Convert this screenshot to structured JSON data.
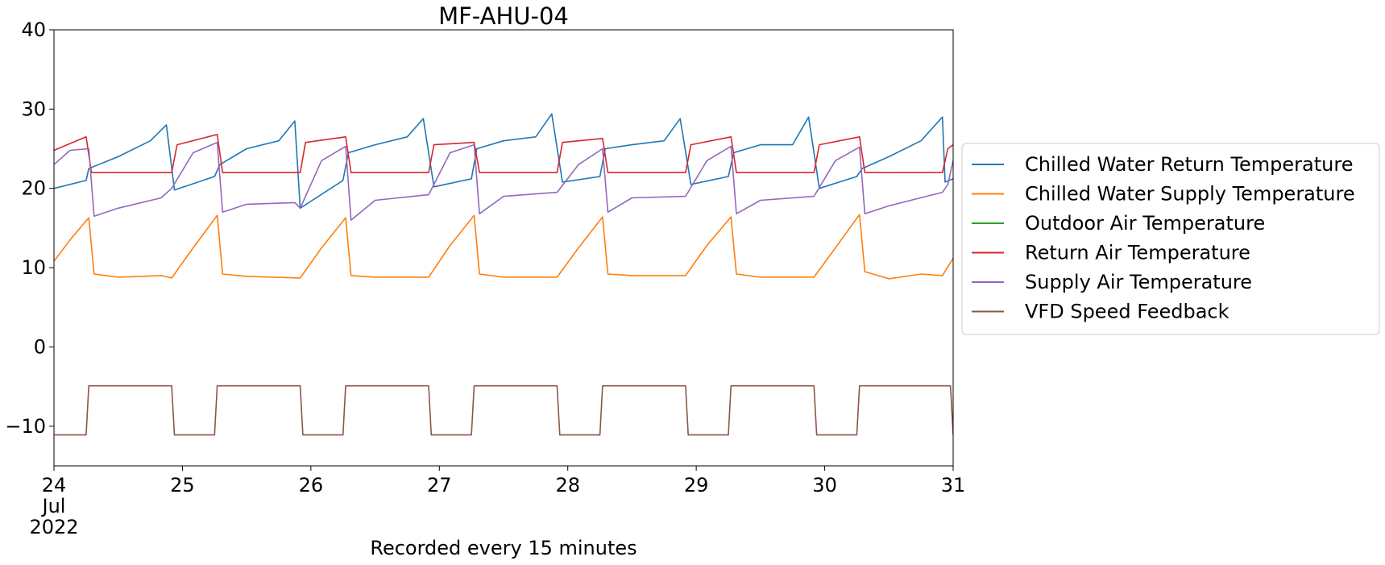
{
  "chart_data": {
    "type": "line",
    "title": "MF-AHU-04",
    "xlabel": "Recorded every 15 minutes",
    "ylabel": "",
    "xlim": [
      "2022-07-24",
      "2022-07-31"
    ],
    "ylim": [
      -15,
      40
    ],
    "x_ticks": [
      {
        "value": "2022-07-24",
        "label": "24",
        "sublabels": [
          "Jul",
          "2022"
        ]
      },
      {
        "value": "2022-07-25",
        "label": "25"
      },
      {
        "value": "2022-07-26",
        "label": "26"
      },
      {
        "value": "2022-07-27",
        "label": "27"
      },
      {
        "value": "2022-07-28",
        "label": "28"
      },
      {
        "value": "2022-07-29",
        "label": "29"
      },
      {
        "value": "2022-07-30",
        "label": "30"
      },
      {
        "value": "2022-07-31",
        "label": "31"
      }
    ],
    "y_ticks": [
      {
        "value": 40,
        "label": "40"
      },
      {
        "value": 30,
        "label": "30"
      },
      {
        "value": 20,
        "label": "20"
      },
      {
        "value": 10,
        "label": "10"
      },
      {
        "value": 0,
        "label": "0"
      },
      {
        "value": -10,
        "label": "−10"
      }
    ],
    "grid": false,
    "legend_position": "right-outside",
    "series": [
      {
        "name": "Chilled Water Return Temperature",
        "color": "#1f77b4",
        "points": [
          [
            "2022-07-24 00:00",
            20.0
          ],
          [
            "2022-07-24 06:00",
            21.0
          ],
          [
            "2022-07-24 06:30",
            22.5
          ],
          [
            "2022-07-24 12:00",
            24.0
          ],
          [
            "2022-07-24 18:00",
            26.0
          ],
          [
            "2022-07-24 21:00",
            28.0
          ],
          [
            "2022-07-24 22:30",
            19.8
          ],
          [
            "2022-07-25 06:00",
            21.5
          ],
          [
            "2022-07-25 07:00",
            23.0
          ],
          [
            "2022-07-25 12:00",
            25.0
          ],
          [
            "2022-07-25 18:00",
            26.0
          ],
          [
            "2022-07-25 21:00",
            28.5
          ],
          [
            "2022-07-25 22:00",
            17.5
          ],
          [
            "2022-07-26 06:00",
            21.0
          ],
          [
            "2022-07-26 07:00",
            24.5
          ],
          [
            "2022-07-26 12:00",
            25.5
          ],
          [
            "2022-07-26 18:00",
            26.5
          ],
          [
            "2022-07-26 21:00",
            28.8
          ],
          [
            "2022-07-26 23:00",
            20.2
          ],
          [
            "2022-07-27 06:00",
            21.2
          ],
          [
            "2022-07-27 07:00",
            25.0
          ],
          [
            "2022-07-27 12:00",
            26.0
          ],
          [
            "2022-07-27 18:00",
            26.5
          ],
          [
            "2022-07-27 21:00",
            29.4
          ],
          [
            "2022-07-27 23:00",
            20.8
          ],
          [
            "2022-07-28 06:00",
            21.5
          ],
          [
            "2022-07-28 07:00",
            25.0
          ],
          [
            "2022-07-28 12:00",
            25.5
          ],
          [
            "2022-07-28 18:00",
            26.0
          ],
          [
            "2022-07-28 21:00",
            28.8
          ],
          [
            "2022-07-28 23:00",
            20.5
          ],
          [
            "2022-07-29 06:00",
            21.5
          ],
          [
            "2022-07-29 07:00",
            24.5
          ],
          [
            "2022-07-29 12:00",
            25.5
          ],
          [
            "2022-07-29 18:00",
            25.5
          ],
          [
            "2022-07-29 21:00",
            29.0
          ],
          [
            "2022-07-29 23:00",
            20.0
          ],
          [
            "2022-07-30 06:00",
            21.5
          ],
          [
            "2022-07-30 07:00",
            22.5
          ],
          [
            "2022-07-30 12:00",
            24.0
          ],
          [
            "2022-07-30 18:00",
            26.0
          ],
          [
            "2022-07-30 22:00",
            29.0
          ],
          [
            "2022-07-30 22:30",
            20.8
          ],
          [
            "2022-07-31 00:00",
            21.2
          ]
        ]
      },
      {
        "name": "Chilled Water Supply Temperature",
        "color": "#ff7f0e",
        "points": [
          [
            "2022-07-24 00:00",
            10.8
          ],
          [
            "2022-07-24 03:00",
            13.5
          ],
          [
            "2022-07-24 06:30",
            16.3
          ],
          [
            "2022-07-24 07:30",
            9.2
          ],
          [
            "2022-07-24 12:00",
            8.8
          ],
          [
            "2022-07-24 20:00",
            9.0
          ],
          [
            "2022-07-24 22:00",
            8.7
          ],
          [
            "2022-07-25 02:00",
            12.5
          ],
          [
            "2022-07-25 06:30",
            16.6
          ],
          [
            "2022-07-25 07:30",
            9.2
          ],
          [
            "2022-07-25 12:00",
            8.9
          ],
          [
            "2022-07-25 22:00",
            8.7
          ],
          [
            "2022-07-26 02:00",
            12.5
          ],
          [
            "2022-07-26 06:30",
            16.3
          ],
          [
            "2022-07-26 07:30",
            9.0
          ],
          [
            "2022-07-26 12:00",
            8.8
          ],
          [
            "2022-07-26 22:00",
            8.8
          ],
          [
            "2022-07-27 02:00",
            12.8
          ],
          [
            "2022-07-27 06:30",
            16.6
          ],
          [
            "2022-07-27 07:30",
            9.2
          ],
          [
            "2022-07-27 12:00",
            8.8
          ],
          [
            "2022-07-27 22:00",
            8.8
          ],
          [
            "2022-07-28 02:00",
            12.5
          ],
          [
            "2022-07-28 06:30",
            16.4
          ],
          [
            "2022-07-28 07:30",
            9.2
          ],
          [
            "2022-07-28 12:00",
            9.0
          ],
          [
            "2022-07-28 22:00",
            9.0
          ],
          [
            "2022-07-29 02:00",
            12.8
          ],
          [
            "2022-07-29 06:30",
            16.4
          ],
          [
            "2022-07-29 07:30",
            9.2
          ],
          [
            "2022-07-29 12:00",
            8.8
          ],
          [
            "2022-07-29 22:00",
            8.8
          ],
          [
            "2022-07-30 02:00",
            12.5
          ],
          [
            "2022-07-30 06:30",
            16.7
          ],
          [
            "2022-07-30 07:30",
            9.5
          ],
          [
            "2022-07-30 12:00",
            8.6
          ],
          [
            "2022-07-30 18:00",
            9.2
          ],
          [
            "2022-07-30 22:00",
            9.0
          ],
          [
            "2022-07-31 00:00",
            11.2
          ]
        ]
      },
      {
        "name": "Outdoor Air Temperature",
        "color": "#2ca02c",
        "points": []
      },
      {
        "name": "Return Air Temperature",
        "color": "#d62728",
        "points": [
          [
            "2022-07-24 00:00",
            24.8
          ],
          [
            "2022-07-24 06:00",
            26.5
          ],
          [
            "2022-07-24 07:00",
            22.0
          ],
          [
            "2022-07-24 22:00",
            22.0
          ],
          [
            "2022-07-24 23:00",
            25.5
          ],
          [
            "2022-07-25 06:30",
            26.8
          ],
          [
            "2022-07-25 07:30",
            22.0
          ],
          [
            "2022-07-25 22:00",
            22.0
          ],
          [
            "2022-07-25 23:00",
            25.8
          ],
          [
            "2022-07-26 06:30",
            26.5
          ],
          [
            "2022-07-26 07:30",
            22.0
          ],
          [
            "2022-07-26 22:00",
            22.0
          ],
          [
            "2022-07-26 23:00",
            25.5
          ],
          [
            "2022-07-27 06:30",
            25.8
          ],
          [
            "2022-07-27 07:30",
            22.0
          ],
          [
            "2022-07-27 22:00",
            22.0
          ],
          [
            "2022-07-27 23:00",
            25.8
          ],
          [
            "2022-07-28 06:30",
            26.3
          ],
          [
            "2022-07-28 07:30",
            22.0
          ],
          [
            "2022-07-28 22:00",
            22.0
          ],
          [
            "2022-07-28 23:00",
            25.5
          ],
          [
            "2022-07-29 06:30",
            26.5
          ],
          [
            "2022-07-29 07:30",
            22.0
          ],
          [
            "2022-07-29 22:00",
            22.0
          ],
          [
            "2022-07-29 23:00",
            25.5
          ],
          [
            "2022-07-30 06:30",
            26.5
          ],
          [
            "2022-07-30 07:30",
            22.0
          ],
          [
            "2022-07-30 22:00",
            22.0
          ],
          [
            "2022-07-30 23:00",
            25.0
          ],
          [
            "2022-07-31 00:00",
            25.5
          ]
        ]
      },
      {
        "name": "Supply Air Temperature",
        "color": "#9467bd",
        "points": [
          [
            "2022-07-24 00:00",
            23.0
          ],
          [
            "2022-07-24 03:00",
            24.8
          ],
          [
            "2022-07-24 06:30",
            25.0
          ],
          [
            "2022-07-24 07:30",
            16.5
          ],
          [
            "2022-07-24 12:00",
            17.5
          ],
          [
            "2022-07-24 20:00",
            18.8
          ],
          [
            "2022-07-24 22:00",
            20.0
          ],
          [
            "2022-07-25 02:00",
            24.5
          ],
          [
            "2022-07-25 06:30",
            25.8
          ],
          [
            "2022-07-25 07:30",
            17.0
          ],
          [
            "2022-07-25 12:00",
            18.0
          ],
          [
            "2022-07-25 21:00",
            18.2
          ],
          [
            "2022-07-25 22:00",
            17.5
          ],
          [
            "2022-07-26 02:00",
            23.5
          ],
          [
            "2022-07-26 06:30",
            25.3
          ],
          [
            "2022-07-26 07:30",
            16.0
          ],
          [
            "2022-07-26 12:00",
            18.5
          ],
          [
            "2022-07-26 22:00",
            19.2
          ],
          [
            "2022-07-27 02:00",
            24.5
          ],
          [
            "2022-07-27 06:30",
            25.5
          ],
          [
            "2022-07-27 07:30",
            16.8
          ],
          [
            "2022-07-27 12:00",
            19.0
          ],
          [
            "2022-07-27 22:00",
            19.5
          ],
          [
            "2022-07-28 02:00",
            23.0
          ],
          [
            "2022-07-28 06:30",
            25.0
          ],
          [
            "2022-07-28 07:30",
            17.0
          ],
          [
            "2022-07-28 12:00",
            18.8
          ],
          [
            "2022-07-28 22:00",
            19.0
          ],
          [
            "2022-07-29 02:00",
            23.5
          ],
          [
            "2022-07-29 06:30",
            25.3
          ],
          [
            "2022-07-29 07:30",
            16.8
          ],
          [
            "2022-07-29 12:00",
            18.5
          ],
          [
            "2022-07-29 22:00",
            19.0
          ],
          [
            "2022-07-30 02:00",
            23.5
          ],
          [
            "2022-07-30 06:30",
            25.2
          ],
          [
            "2022-07-30 07:30",
            16.8
          ],
          [
            "2022-07-30 12:00",
            17.8
          ],
          [
            "2022-07-30 22:00",
            19.5
          ],
          [
            "2022-07-30 23:00",
            20.5
          ],
          [
            "2022-07-31 00:00",
            23.5
          ]
        ]
      },
      {
        "name": "VFD Speed Feedback",
        "color": "#8c564b",
        "points": [
          [
            "2022-07-24 00:00",
            -11.1
          ],
          [
            "2022-07-24 06:00",
            -11.1
          ],
          [
            "2022-07-24 06:30",
            -4.9
          ],
          [
            "2022-07-24 22:00",
            -4.9
          ],
          [
            "2022-07-24 22:30",
            -11.1
          ],
          [
            "2022-07-25 06:00",
            -11.1
          ],
          [
            "2022-07-25 06:30",
            -4.9
          ],
          [
            "2022-07-25 22:00",
            -4.9
          ],
          [
            "2022-07-25 22:30",
            -11.1
          ],
          [
            "2022-07-26 06:00",
            -11.1
          ],
          [
            "2022-07-26 06:30",
            -4.9
          ],
          [
            "2022-07-26 22:00",
            -4.9
          ],
          [
            "2022-07-26 22:30",
            -11.1
          ],
          [
            "2022-07-27 06:00",
            -11.1
          ],
          [
            "2022-07-27 06:30",
            -4.9
          ],
          [
            "2022-07-27 22:00",
            -4.9
          ],
          [
            "2022-07-27 22:30",
            -11.1
          ],
          [
            "2022-07-28 06:00",
            -11.1
          ],
          [
            "2022-07-28 06:30",
            -4.9
          ],
          [
            "2022-07-28 22:00",
            -4.9
          ],
          [
            "2022-07-28 22:30",
            -11.1
          ],
          [
            "2022-07-29 06:00",
            -11.1
          ],
          [
            "2022-07-29 06:30",
            -4.9
          ],
          [
            "2022-07-29 22:00",
            -4.9
          ],
          [
            "2022-07-29 22:30",
            -11.1
          ],
          [
            "2022-07-30 06:00",
            -11.1
          ],
          [
            "2022-07-30 06:30",
            -4.9
          ],
          [
            "2022-07-30 23:30",
            -4.9
          ],
          [
            "2022-07-31 00:00",
            -11.1
          ]
        ]
      }
    ]
  }
}
